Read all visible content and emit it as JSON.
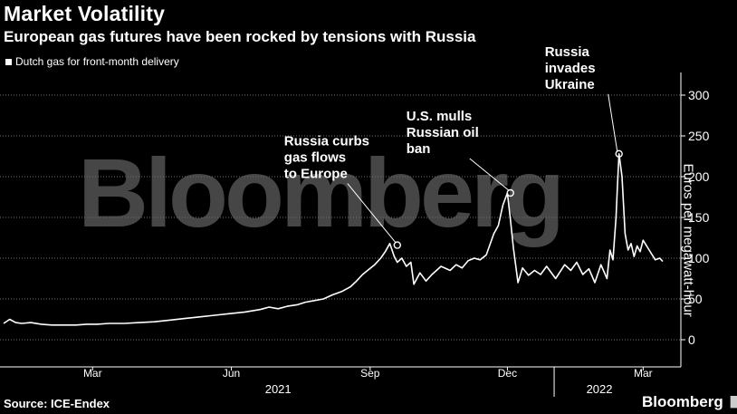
{
  "header": {
    "title": "Market Volatility",
    "subtitle": "European gas futures have been rocked by tensions with Russia"
  },
  "legend": {
    "label": "Dutch gas for front-month delivery"
  },
  "watermark": "Bloomberg",
  "footer": {
    "source": "Source: ICE-Endex",
    "brand": "Bloomberg",
    "brand_icon": "chart-icon"
  },
  "colors": {
    "background": "#000000",
    "line": "#ffffff",
    "grid": "#6e6e6e",
    "watermark": "#4a4a4a"
  },
  "chart_data": {
    "type": "line",
    "title": "Market Volatility",
    "subtitle": "European gas futures have been rocked by tensions with Russia",
    "xlabel": "",
    "ylabel": "Euros per megawatt-hour",
    "ylim": [
      -20,
      320
    ],
    "yticks": [
      0,
      50,
      100,
      150,
      200,
      250,
      300
    ],
    "grid": true,
    "xlim": [
      0,
      437
    ],
    "x_ticks": [
      {
        "day": 59,
        "label": "Mar"
      },
      {
        "day": 151,
        "label": "Jun"
      },
      {
        "day": 243,
        "label": "Sep"
      },
      {
        "day": 334,
        "label": "Dec"
      },
      {
        "day": 424,
        "label": "Mar"
      }
    ],
    "x_major_ticks": [
      {
        "day": 365
      }
    ],
    "year_labels": [
      {
        "day": 182,
        "label": "2021"
      },
      {
        "day": 395,
        "label": "2022"
      }
    ],
    "series": [
      {
        "name": "Dutch gas for front-month delivery",
        "x": [
          0,
          4,
          8,
          12,
          18,
          25,
          32,
          40,
          48,
          55,
          62,
          70,
          80,
          90,
          100,
          110,
          120,
          130,
          140,
          150,
          160,
          170,
          176,
          182,
          188,
          195,
          200,
          206,
          212,
          218,
          224,
          230,
          234,
          238,
          242,
          246,
          250,
          253,
          256,
          259,
          261,
          264,
          267,
          270,
          272,
          276,
          280,
          284,
          290,
          296,
          300,
          304,
          308,
          312,
          316,
          320,
          325,
          328,
          331,
          334,
          336,
          338,
          341,
          344,
          348,
          352,
          356,
          360,
          366,
          372,
          376,
          380,
          384,
          388,
          392,
          396,
          400,
          402,
          404,
          406,
          407,
          408,
          410,
          412,
          414,
          416,
          418,
          420,
          422,
          424,
          428,
          432,
          435,
          437
        ],
        "values": [
          20,
          25,
          21,
          20,
          21,
          19,
          18,
          18,
          18,
          19,
          19,
          20,
          20,
          21,
          22,
          24,
          26,
          28,
          30,
          32,
          34,
          37,
          40,
          38,
          41,
          43,
          46,
          48,
          50,
          55,
          59,
          65,
          72,
          80,
          86,
          92,
          100,
          108,
          118,
          102,
          95,
          100,
          90,
          95,
          68,
          82,
          72,
          80,
          90,
          85,
          92,
          88,
          97,
          100,
          98,
          104,
          130,
          140,
          165,
          180,
          148,
          112,
          70,
          88,
          79,
          85,
          80,
          90,
          75,
          92,
          85,
          95,
          80,
          87,
          70,
          92,
          75,
          110,
          98,
          150,
          190,
          228,
          200,
          130,
          110,
          118,
          102,
          115,
          108,
          122,
          110,
          98,
          100,
          96
        ]
      }
    ],
    "annotations": [
      {
        "day": 261,
        "value": 116,
        "lines": [
          "Russia curbs",
          "gas flows",
          "to Europe"
        ]
      },
      {
        "day": 336,
        "value": 180,
        "lines": [
          "U.S. mulls",
          "Russian oil",
          "ban"
        ]
      },
      {
        "day": 408,
        "value": 228,
        "lines": [
          "Russia",
          "invades",
          "Ukraine"
        ]
      }
    ]
  }
}
